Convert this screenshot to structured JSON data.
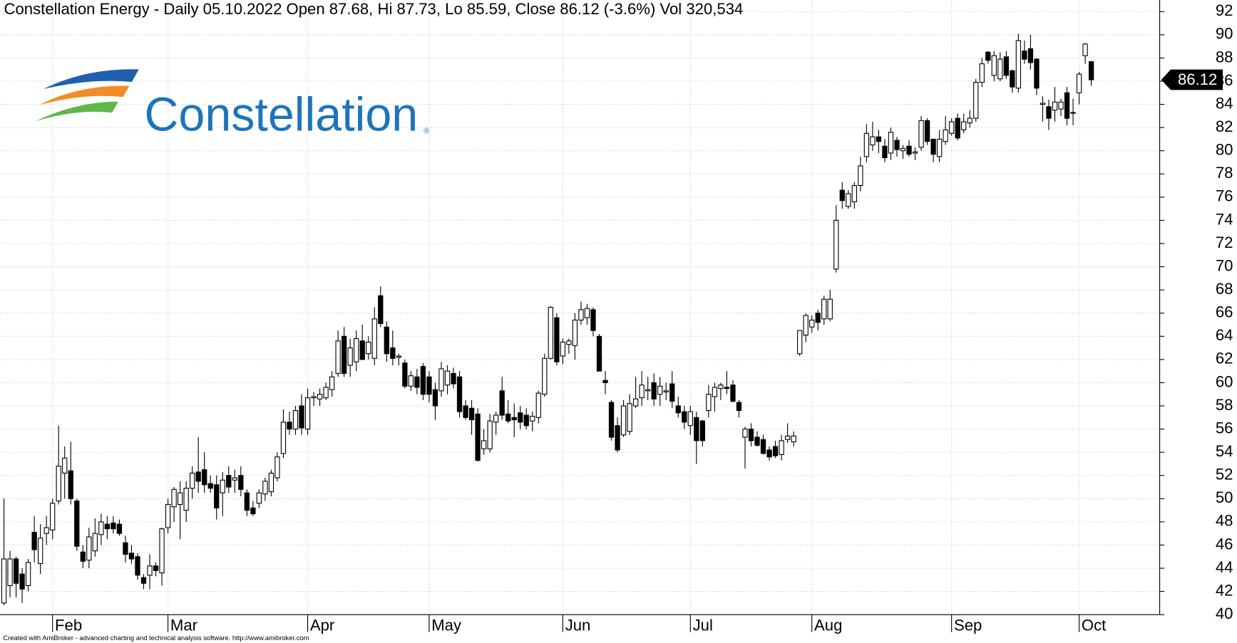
{
  "chart_data": {
    "type": "candlestick",
    "title": "Constellation Energy - Daily 05.10.2022 Open 87.68, Hi 87.73, Lo 85.59, Close 86.12 (-3.6%) Vol 320,534",
    "footer": "Created with AmiBroker - advanced charting and technical analysis software. http://www.amibroker.com",
    "logo_text": "Constellation",
    "logo_mark": "®",
    "last_close": 86.12,
    "up_color": "#ffffff",
    "down_color": "#000000",
    "grid": true,
    "ylim": [
      40,
      93
    ],
    "yticks": [
      40,
      42,
      44,
      46,
      48,
      50,
      52,
      54,
      56,
      58,
      60,
      62,
      64,
      66,
      68,
      70,
      72,
      74,
      76,
      78,
      80,
      82,
      84,
      86,
      88,
      90,
      92
    ],
    "categories": [
      null,
      null,
      null,
      null,
      null,
      null,
      null,
      null,
      "Feb",
      null,
      null,
      null,
      null,
      null,
      null,
      null,
      null,
      null,
      null,
      null,
      null,
      null,
      null,
      null,
      null,
      null,
      null,
      "Mar",
      null,
      null,
      null,
      null,
      null,
      null,
      null,
      null,
      null,
      null,
      null,
      null,
      null,
      null,
      null,
      null,
      null,
      null,
      null,
      null,
      null,
      null,
      "Apr",
      null,
      null,
      null,
      null,
      null,
      null,
      null,
      null,
      null,
      null,
      null,
      null,
      null,
      null,
      null,
      null,
      null,
      null,
      null,
      "May",
      null,
      null,
      null,
      null,
      null,
      null,
      null,
      null,
      null,
      null,
      null,
      null,
      null,
      null,
      null,
      null,
      null,
      null,
      null,
      null,
      null,
      "Jun",
      null,
      null,
      null,
      null,
      null,
      null,
      null,
      null,
      null,
      null,
      null,
      null,
      null,
      null,
      null,
      null,
      null,
      null,
      null,
      null,
      "Jul",
      null,
      null,
      null,
      null,
      null,
      null,
      null,
      null,
      null,
      null,
      null,
      null,
      null,
      null,
      null,
      null,
      null,
      null,
      null,
      "Aug",
      null,
      null,
      null,
      null,
      null,
      null,
      null,
      null,
      null,
      null,
      null,
      null,
      null,
      null,
      null,
      null,
      null,
      null,
      null,
      null,
      null,
      null,
      "Sep",
      null,
      null,
      null,
      null,
      null,
      null,
      null,
      null,
      null,
      null,
      null,
      null,
      null,
      null,
      null,
      null,
      null,
      null,
      null,
      null,
      "Oct",
      null,
      null
    ],
    "open": [
      41,
      42.5,
      44.8,
      43.5,
      42.5,
      47.1,
      44.4,
      47,
      47.3,
      49.8,
      52.2,
      52.4,
      49.8,
      45.4,
      44.7,
      45.5,
      46.9,
      47.8,
      47.9,
      47.8,
      46.2,
      45.3,
      45,
      43.2,
      43.4,
      44.2,
      43.6,
      47.5,
      49.3,
      49.5,
      49,
      50.9,
      52.3,
      52.5,
      51.3,
      51.2,
      50.5,
      52,
      51.6,
      52,
      50.5,
      49.2,
      49.6,
      50.4,
      50.6,
      51.8,
      53.9,
      56.6,
      56,
      58,
      56,
      58.7,
      58.6,
      58.7,
      59.4,
      60.8,
      64,
      61.5,
      61.8,
      63.6,
      62.5,
      62.1,
      67.5,
      64.8,
      63,
      62.2,
      61.7,
      59.7,
      60.5,
      61.4,
      60.5,
      59.4,
      59.3,
      59.8,
      60.8,
      60.5,
      58,
      57.8,
      57.3,
      54.3,
      54.3,
      56.6,
      59.3,
      57.3,
      57,
      57.4,
      57.2,
      56.7,
      57,
      59,
      62.1,
      65.6,
      62.3,
      63.3,
      63.2,
      65.4,
      65.6,
      66.3,
      64,
      60.2,
      58.3,
      56.3,
      55.5,
      55.8,
      58,
      58.7,
      59.3,
      60,
      59,
      59.2,
      59.9,
      58,
      57.5,
      56.3,
      57,
      56.7,
      57.6,
      58.8,
      59.5,
      59.6,
      59.8,
      58.3,
      55.3,
      56,
      55.3,
      55.1,
      54.2,
      54.5,
      53.8,
      55.1,
      54.9,
      62.5,
      64.1,
      64.8,
      66,
      65.5,
      65.5,
      69.8,
      76.6,
      75.2,
      75.6,
      77,
      79.5,
      80.5,
      81.2,
      80.4,
      79.8,
      80.9,
      80,
      80.4,
      79.8,
      80.3,
      82.6,
      81,
      79.5,
      80.8,
      81.5,
      82.8,
      81.8,
      82.4,
      82.8,
      85.9,
      88.5,
      86.5,
      86.2,
      88.1,
      86.9,
      85.4,
      88.6,
      88.8,
      87.9,
      84,
      83.8,
      83.5,
      83.6,
      85,
      83.3,
      85,
      88.2,
      87.68
    ],
    "high": [
      50,
      45.5,
      45,
      44,
      44.8,
      48.5,
      47.8,
      48.5,
      50,
      56.3,
      54.5,
      54.9,
      50,
      46,
      47.5,
      48.3,
      48.7,
      48.5,
      48.5,
      48.2,
      46.8,
      46,
      45.3,
      43.5,
      45.2,
      44.5,
      47.5,
      50,
      51,
      51.5,
      51.5,
      52.8,
      55.3,
      54,
      52,
      52,
      52.3,
      52.8,
      52.5,
      52.8,
      50.8,
      49.8,
      50.8,
      51.8,
      52.5,
      54,
      57.7,
      57.5,
      58,
      59,
      59.5,
      59.2,
      59.5,
      60,
      61,
      64.5,
      64.8,
      63.8,
      64.5,
      65,
      64,
      66.5,
      68.3,
      65.3,
      64.5,
      62.5,
      62,
      61,
      61.2,
      61.7,
      61,
      60,
      61.8,
      61.5,
      61.3,
      61,
      58.5,
      58.5,
      57.8,
      56,
      57.3,
      57.5,
      60.5,
      58.5,
      58.2,
      58,
      57.8,
      57.5,
      59.3,
      62.5,
      66.6,
      66,
      63.8,
      63.8,
      66,
      67,
      66.8,
      66.5,
      64.2,
      61,
      58.5,
      57,
      58.5,
      59,
      60.5,
      61,
      60.5,
      60.8,
      60.5,
      60,
      61,
      58.8,
      58,
      58,
      57.5,
      56.8,
      59.8,
      60,
      60,
      61,
      60.2,
      58.5,
      56.2,
      56.5,
      55.8,
      55.5,
      54.5,
      55,
      55.5,
      56.5,
      55.8,
      64.5,
      66,
      65.8,
      66.3,
      67.5,
      68,
      75.3,
      77.3,
      76.6,
      77.3,
      79.5,
      82.3,
      82.5,
      81.8,
      81,
      82,
      81.2,
      80.5,
      80.9,
      80.3,
      83,
      82.8,
      81,
      81.8,
      83,
      82.8,
      83.2,
      83.2,
      83.5,
      86.2,
      88,
      88.6,
      88.6,
      88.5,
      88.6,
      87,
      90.1,
      89.5,
      90,
      88,
      84.7,
      84.4,
      85.5,
      84.5,
      85.5,
      84.5,
      86.8,
      89.3,
      87.73
    ],
    "low": [
      40.8,
      41.5,
      41.5,
      41,
      42,
      44.5,
      43.5,
      46,
      46.5,
      49.5,
      50,
      49.5,
      45.5,
      44,
      44,
      45,
      46,
      46.5,
      47,
      46.8,
      44.5,
      44.4,
      43,
      42.2,
      42.2,
      43.3,
      42.5,
      47,
      48,
      46.5,
      48,
      50,
      50.5,
      50.5,
      50.5,
      48.2,
      48.5,
      50.5,
      50.5,
      50.2,
      48.5,
      48.5,
      49.2,
      49.8,
      50.2,
      51.5,
      53.5,
      55.5,
      55.5,
      55.5,
      55.5,
      58,
      58,
      58.5,
      58.8,
      60.5,
      60.5,
      60.5,
      61,
      62,
      62,
      61.5,
      64.8,
      61.8,
      61.5,
      61.5,
      59.5,
      59.3,
      59,
      58.5,
      58.3,
      56.8,
      58.8,
      59,
      59.5,
      57,
      56.8,
      55.5,
      53.2,
      53.8,
      54,
      55.5,
      56.8,
      56.5,
      55.3,
      56,
      56,
      55.8,
      56.5,
      58.8,
      62,
      61.5,
      61.6,
      62.5,
      62,
      65,
      65,
      64,
      61,
      59,
      55,
      54,
      55.3,
      55.5,
      57.8,
      58,
      58.5,
      58,
      58,
      58.5,
      57.8,
      57,
      56,
      55.5,
      53,
      54.5,
      57,
      57.5,
      58.5,
      59,
      58.3,
      57,
      52.6,
      54.5,
      54.5,
      53.8,
      53.3,
      53.5,
      53.3,
      54.8,
      54.5,
      62.3,
      63.5,
      64.3,
      64.5,
      65,
      65.3,
      69.5,
      75,
      75,
      75,
      76.5,
      79,
      80,
      79.8,
      79,
      79.2,
      79.5,
      79.3,
      79.5,
      79.2,
      80,
      80.5,
      79,
      79,
      80.5,
      81.3,
      80.9,
      81.5,
      82,
      82.5,
      85.5,
      87.5,
      86,
      86,
      86.2,
      85,
      85,
      87.5,
      87,
      84.8,
      82.5,
      81.8,
      82.5,
      83,
      82.2,
      82.2,
      84,
      87.5,
      85.59
    ],
    "close": [
      44.8,
      44.8,
      42.7,
      42.2,
      44.5,
      45.6,
      46.6,
      47.5,
      49.6,
      52.8,
      53.5,
      50,
      45.9,
      44.6,
      46.7,
      47,
      48,
      47.4,
      47.4,
      47,
      45.2,
      44.8,
      43.4,
      42.7,
      44.2,
      43.8,
      47.4,
      49.5,
      50.8,
      50.5,
      50.9,
      52.2,
      51.5,
      51.2,
      50.9,
      49.2,
      51.6,
      51,
      51.8,
      50.8,
      49,
      48.7,
      50.5,
      51.5,
      52.2,
      53.6,
      56.6,
      56,
      57.6,
      56.1,
      58.7,
      58.8,
      59,
      59.6,
      60.5,
      63.6,
      60.8,
      63,
      63.8,
      62,
      63.5,
      65.5,
      65.1,
      62.5,
      62.1,
      62.3,
      59.7,
      60.6,
      59.6,
      59,
      59,
      58,
      61.2,
      61,
      59.9,
      57.5,
      57,
      56.8,
      53.3,
      55,
      56.7,
      57.2,
      57.2,
      56.7,
      56.8,
      56.6,
      56.3,
      57.1,
      59.1,
      62.1,
      66.5,
      61.8,
      63.5,
      63.6,
      65.4,
      66.3,
      66.4,
      64.5,
      61,
      60,
      55.3,
      54.2,
      58,
      58.2,
      58.6,
      59.8,
      59.4,
      58.6,
      59.7,
      59.3,
      58.4,
      57.4,
      56.6,
      57.5,
      55,
      55,
      59,
      59.6,
      59.8,
      59.5,
      58.4,
      57.6,
      56,
      55,
      54.6,
      53.9,
      53.6,
      53.7,
      55,
      55.4,
      55.4,
      64.5,
      65.8,
      65.4,
      65.2,
      67.2,
      67.2,
      74,
      75.7,
      76.3,
      77,
      78.7,
      81.5,
      81.2,
      80.8,
      79.4,
      81.6,
      80.1,
      80.2,
      79.7,
      79.9,
      82.6,
      80.8,
      79.7,
      81,
      81.8,
      82.5,
      81.1,
      82.5,
      82.8,
      85.9,
      87.5,
      87.8,
      88.2,
      87.9,
      86.5,
      85.5,
      89.5,
      87.9,
      87.6,
      85.4,
      84.1,
      82.8,
      84.2,
      84.2,
      82.8,
      83.3,
      86.6,
      89.2,
      86.12
    ]
  }
}
